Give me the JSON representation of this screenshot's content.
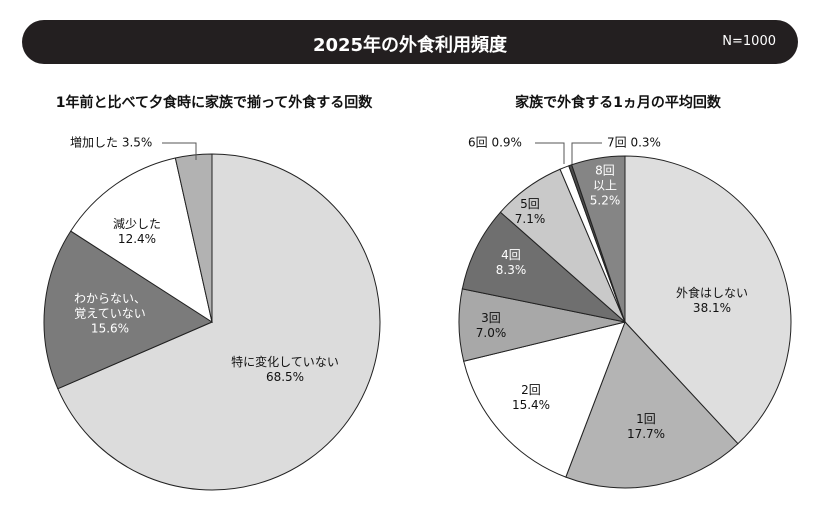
{
  "header": {
    "title": "2025年の外食利用頻度",
    "note": "N=1000"
  },
  "chart_data": [
    {
      "type": "pie",
      "title": "1年前と比べて夕食時に家族で揃って外食する回数",
      "categories": [
        "特に変化していない",
        "わからない、\n覚えていない",
        "減少した",
        "増加した"
      ],
      "values": [
        68.5,
        15.6,
        12.4,
        3.5
      ],
      "value_labels": [
        "68.5%",
        "15.6%",
        "12.4%",
        "3.5%"
      ],
      "colors": [
        "#dcdcdc",
        "#7b7b7b",
        "#ffffff",
        "#b2b2b2"
      ]
    },
    {
      "type": "pie",
      "title": "家族で外食する1ヵ月の平均回数",
      "categories": [
        "外食はしない",
        "1回",
        "2回",
        "3回",
        "4回",
        "5回",
        "6回",
        "7回",
        "8回\n以上"
      ],
      "values": [
        38.1,
        17.7,
        15.4,
        7.0,
        8.3,
        7.1,
        0.9,
        0.3,
        5.2
      ],
      "value_labels": [
        "38.1%",
        "17.7%",
        "15.4%",
        "7.0%",
        "8.3%",
        "7.1%",
        "0.9%",
        "0.3%",
        "5.2%"
      ],
      "colors": [
        "#dedede",
        "#b4b4b4",
        "#ffffff",
        "#a8a8a8",
        "#6f6f6f",
        "#c9c9c9",
        "#ffffff",
        "#4a4a4a",
        "#858585"
      ]
    }
  ]
}
